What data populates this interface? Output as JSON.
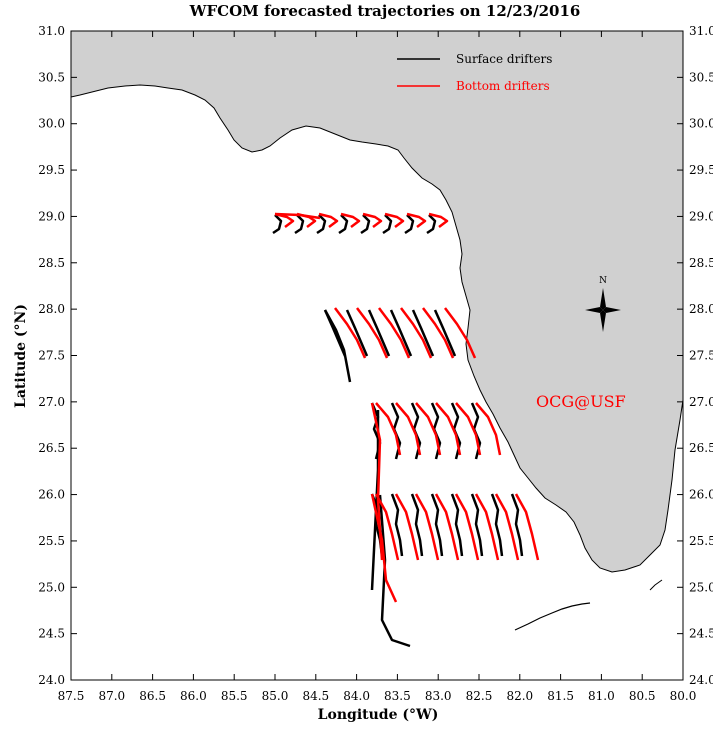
{
  "title": "WFCOM forecasted trajectories on 12/23/2016",
  "x_axis": {
    "label": "Longitude (°W)",
    "ticks": [
      "87.5",
      "87.0",
      "86.5",
      "86.0",
      "85.5",
      "85.0",
      "84.5",
      "84.0",
      "83.5",
      "83.0",
      "82.5",
      "82.0",
      "81.5",
      "81.0",
      "80.5",
      "80.0"
    ]
  },
  "y_axis": {
    "label": "Latitude (°N)",
    "ticks": [
      "31.0",
      "30.5",
      "30.0",
      "29.5",
      "29.0",
      "28.5",
      "28.0",
      "27.5",
      "27.0",
      "26.5",
      "26.0",
      "25.5",
      "25.0",
      "24.5",
      "24.0"
    ]
  },
  "legend": [
    {
      "label": "Surface drifters",
      "color": "#000000"
    },
    {
      "label": "Bottom drifters",
      "color": "#ff0000"
    }
  ],
  "compass_label": "N",
  "watermark": "OCG@USF",
  "colors": {
    "land": "#d0d0d0",
    "surface": "#000000",
    "bottom": "#ff0000",
    "watermark": "#ff0000"
  },
  "icons": {
    "compass": "north-arrow-compass-icon"
  }
}
